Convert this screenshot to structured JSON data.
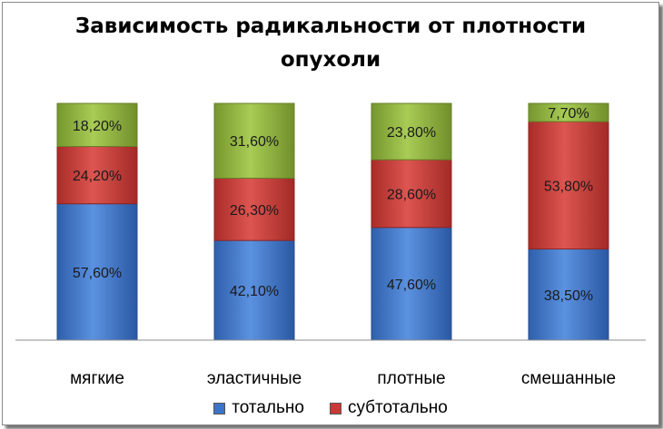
{
  "chart_data": {
    "type": "bar",
    "stacked": true,
    "title_line1": "Зависимость радикальности от плотности",
    "title_line2": "опухоли",
    "categories": [
      "мягкие",
      "эластичные",
      "плотные",
      "смешанные"
    ],
    "series": [
      {
        "name": "тотально",
        "color": "#3b74c9",
        "values": [
          57.6,
          42.1,
          47.6,
          38.5
        ],
        "labels": [
          "57,60%",
          "42,10%",
          "47,60%",
          "38,50%"
        ]
      },
      {
        "name": "субтотально",
        "color": "#c93a36",
        "values": [
          24.2,
          26.3,
          28.6,
          53.8
        ],
        "labels": [
          "24,20%",
          "26,30%",
          "28,60%",
          "53,80%"
        ]
      },
      {
        "name": "",
        "color": "#93b83f",
        "values": [
          18.2,
          31.6,
          23.8,
          7.7
        ],
        "labels": [
          "18,20%",
          "31,60%",
          "23,80%",
          "7,70%"
        ]
      }
    ],
    "ylim": [
      0,
      100
    ],
    "grid": false,
    "legend": "bottom"
  }
}
